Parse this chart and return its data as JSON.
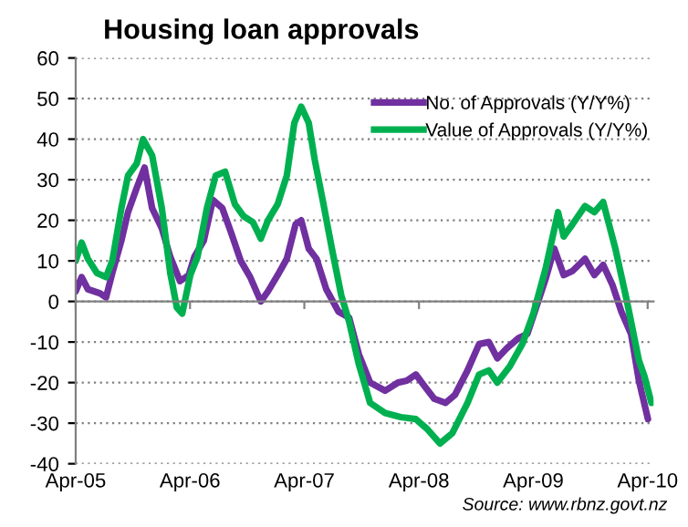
{
  "chart_data": {
    "type": "line",
    "title": "Housing loan approvals",
    "annotations": [
      "Source: www.rbnz.govt.nz"
    ],
    "xlim": [
      "2005-04-01",
      "2010-04-20"
    ],
    "xticks": [
      {
        "value": "2005-04-01",
        "label": "Apr-05"
      },
      {
        "value": "2006-04-01",
        "label": "Apr-06"
      },
      {
        "value": "2007-04-01",
        "label": "Apr-07"
      },
      {
        "value": "2008-04-01",
        "label": "Apr-08"
      },
      {
        "value": "2009-04-01",
        "label": "Apr-09"
      },
      {
        "value": "2010-04-01",
        "label": "Apr-10"
      }
    ],
    "ylim": [
      -40,
      60
    ],
    "yticks": [
      -40,
      -30,
      -20,
      -10,
      0,
      10,
      20,
      30,
      40,
      50,
      60
    ],
    "grid": "y",
    "legend": "top right",
    "marker": "none",
    "line_style": "solid",
    "series": [
      {
        "name": "No. of Approvals (Y/Y%)",
        "color": "#7030a0",
        "x": [
          "2005-04-01",
          "2005-04-20",
          "2005-05-10",
          "2005-06-18",
          "2005-07-07",
          "2005-07-27",
          "2005-08-25",
          "2005-09-15",
          "2005-10-13",
          "2005-11-07",
          "2005-12-01",
          "2006-01-01",
          "2006-01-28",
          "2006-02-28",
          "2006-03-28",
          "2006-04-15",
          "2006-05-15",
          "2006-06-13",
          "2006-07-13",
          "2006-08-10",
          "2006-09-10",
          "2006-10-10",
          "2006-11-13",
          "2006-12-06",
          "2007-01-06",
          "2007-02-04",
          "2007-03-04",
          "2007-03-22",
          "2007-04-15",
          "2007-05-10",
          "2007-06-10",
          "2007-07-19",
          "2007-08-22",
          "2007-09-22",
          "2007-10-28",
          "2007-12-15",
          "2008-01-25",
          "2008-02-22",
          "2008-03-22",
          "2008-04-20",
          "2008-05-20",
          "2008-06-25",
          "2008-07-25",
          "2008-09-03",
          "2008-10-10",
          "2008-11-10",
          "2008-12-07",
          "2009-01-07",
          "2009-02-13",
          "2009-03-13",
          "2009-04-10",
          "2009-05-10",
          "2009-06-07",
          "2009-07-07",
          "2009-08-04",
          "2009-09-13",
          "2009-10-13",
          "2009-11-10",
          "2009-12-10",
          "2010-01-07",
          "2010-02-07",
          "2010-03-04",
          "2010-04-02"
        ],
        "values": [
          2.5,
          6,
          3,
          2,
          1,
          7,
          15,
          22,
          28,
          33,
          23,
          18,
          11,
          5,
          6.5,
          11,
          15,
          25,
          23,
          17,
          10,
          6,
          0,
          2.5,
          6.5,
          10.5,
          19,
          20,
          13,
          10.5,
          3,
          -2.5,
          -4,
          -13,
          -20,
          -22,
          -20,
          -19.5,
          -18,
          -21,
          -24,
          -25,
          -23,
          -17,
          -10.5,
          -10,
          -14,
          -11.5,
          -9,
          -8,
          -1.5,
          5.5,
          13,
          6.5,
          7.5,
          10.5,
          6.5,
          9,
          4,
          -2.5,
          -8,
          -19.5,
          -29
        ]
      },
      {
        "name": "Value of Approvals (Y/Y%)",
        "color": "#00b050",
        "x": [
          "2005-04-01",
          "2005-04-20",
          "2005-05-10",
          "2005-06-08",
          "2005-07-07",
          "2005-07-27",
          "2005-08-25",
          "2005-09-15",
          "2005-10-13",
          "2005-11-02",
          "2005-12-01",
          "2006-01-01",
          "2006-01-28",
          "2006-02-18",
          "2006-03-07",
          "2006-04-02",
          "2006-04-25",
          "2006-05-25",
          "2006-06-22",
          "2006-07-22",
          "2006-08-22",
          "2006-09-19",
          "2006-10-19",
          "2006-11-13",
          "2006-12-06",
          "2007-01-06",
          "2007-02-04",
          "2007-02-28",
          "2007-03-22",
          "2007-04-15",
          "2007-05-04",
          "2007-06-01",
          "2007-06-28",
          "2007-07-28",
          "2007-08-22",
          "2007-09-22",
          "2007-10-28",
          "2007-12-15",
          "2008-02-03",
          "2008-03-22",
          "2008-04-28",
          "2008-06-07",
          "2008-07-16",
          "2008-09-03",
          "2008-10-10",
          "2008-11-10",
          "2008-12-07",
          "2009-01-16",
          "2009-02-25",
          "2009-04-01",
          "2009-05-10",
          "2009-06-19",
          "2009-07-07",
          "2009-08-04",
          "2009-09-13",
          "2009-10-13",
          "2009-11-10",
          "2009-12-19",
          "2010-01-25",
          "2010-03-04",
          "2010-03-22",
          "2010-04-13"
        ],
        "values": [
          10,
          14.5,
          10.5,
          7,
          6,
          10,
          23,
          31,
          34,
          40,
          36,
          23,
          7,
          -1.5,
          -3,
          6.5,
          11,
          23,
          31,
          32,
          24,
          21,
          19.5,
          15.5,
          20,
          24,
          31,
          44,
          48,
          44,
          35,
          24,
          13,
          1.5,
          -5,
          -15.5,
          -25,
          -27.5,
          -28.5,
          -29,
          -31.5,
          -35,
          -32.5,
          -25,
          -18,
          -17,
          -20,
          -16,
          -10.5,
          -3,
          8,
          22,
          16,
          19,
          23.5,
          22,
          24.5,
          13,
          0,
          -14.5,
          -18.5,
          -25
        ]
      }
    ]
  }
}
